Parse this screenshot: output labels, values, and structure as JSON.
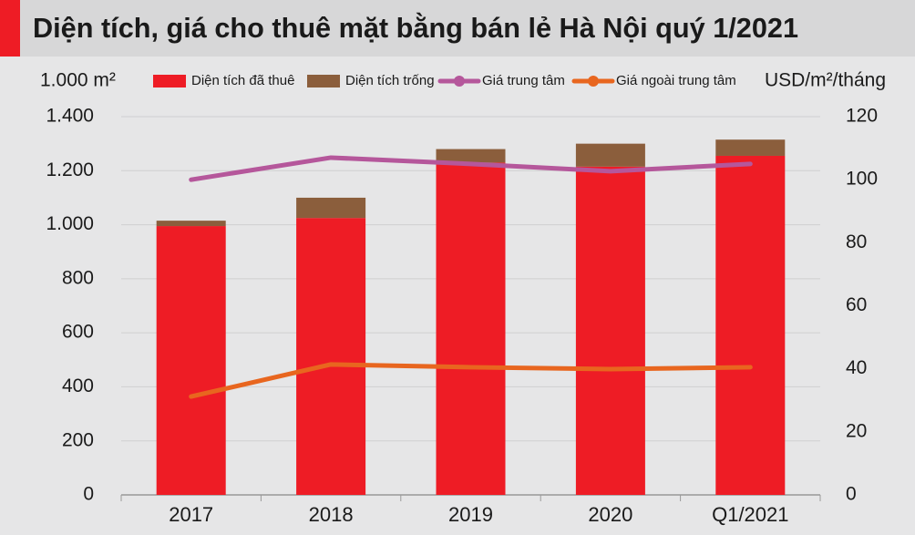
{
  "chart_data": {
    "type": "bar-line",
    "title": "Diện tích, giá cho thuê mặt bằng bán lẻ Hà Nội quý 1/2021",
    "y_label": "1.000 m²",
    "y2_label": "USD/m²/tháng",
    "categories": [
      "2017",
      "2018",
      "2019",
      "2020",
      "Q1/2021"
    ],
    "series": [
      {
        "name": "Diện tích đã thuê",
        "type": "bar",
        "color": "#ee1c25",
        "values": [
          995,
          1025,
          1230,
          1215,
          1255
        ]
      },
      {
        "name": "Diện tích trống",
        "type": "bar",
        "color": "#8b5e3c",
        "values": [
          20,
          75,
          50,
          85,
          60
        ]
      },
      {
        "name": "Giá trung tâm",
        "type": "line",
        "axis": "y2",
        "color": "#b5579b",
        "values": [
          100,
          107,
          105,
          102.7,
          105
        ]
      },
      {
        "name": "Giá ngoài trung tâm",
        "type": "line",
        "axis": "y2",
        "color": "#e8661f",
        "values": [
          31.2,
          41.4,
          40.5,
          39.9,
          40.5
        ]
      }
    ],
    "ylim": [
      0,
      1400
    ],
    "yticks": [
      0,
      200,
      400,
      600,
      800,
      {
        "value": 1000,
        "label": "1.000"
      },
      {
        "value": 1200,
        "label": "1.200"
      },
      {
        "value": 1400,
        "label": "1.400"
      }
    ],
    "y2lim": [
      0,
      120
    ],
    "y2ticks": [
      0,
      20,
      40,
      60,
      80,
      100,
      120
    ],
    "grid": true
  }
}
